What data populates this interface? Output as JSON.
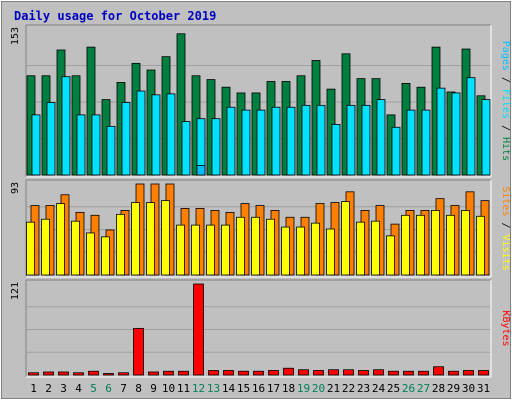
{
  "title": "Daily usage for October 2019",
  "colors": {
    "background": "#c0c0c0",
    "panel": "#c0c0c0",
    "title": "#0000c0",
    "hits": "#008040",
    "files": "#00e0ff",
    "pages": "#00c0ff",
    "visits": "#ffff00",
    "sites": "#ff8000",
    "kbytes": "#ff0000",
    "weekend_label": "#00805c",
    "weekday_label": "#000000",
    "grid": "#a0a0a0"
  },
  "chart_data": {
    "type": "bar",
    "title": "Daily usage for October 2019",
    "categories": [
      "1",
      "2",
      "3",
      "4",
      "5",
      "6",
      "7",
      "8",
      "9",
      "10",
      "11",
      "12",
      "13",
      "14",
      "15",
      "16",
      "17",
      "18",
      "19",
      "20",
      "21",
      "22",
      "23",
      "24",
      "25",
      "26",
      "27",
      "28",
      "29",
      "30",
      "31"
    ],
    "weekend_days": [
      "5",
      "6",
      "12",
      "13",
      "19",
      "20",
      "26",
      "27"
    ],
    "panels": [
      {
        "name": "hits-files-pages",
        "ymax_label": "153",
        "ylim": [
          0,
          153
        ],
        "legend": [
          {
            "text": "Pages",
            "color": "#00c0ff"
          },
          {
            "text": " / ",
            "color": "#000000"
          },
          {
            "text": "Files",
            "color": "#00e0ff"
          },
          {
            "text": " / ",
            "color": "#000000"
          },
          {
            "text": "Hits",
            "color": "#008040"
          }
        ],
        "series": [
          {
            "key": "hits",
            "color": "#008040",
            "values": [
              104,
              104,
              131,
              104,
              134,
              79,
              97,
              117,
              110,
              124,
              148,
              104,
              100,
              92,
              86,
              86,
              98,
              98,
              104,
              120,
              90,
              127,
              101,
              101,
              63,
              96,
              92,
              134,
              87,
              132,
              83
            ]
          },
          {
            "key": "files",
            "color": "#00e0ff",
            "values": [
              63,
              76,
              103,
              63,
              63,
              51,
              76,
              88,
              84,
              85,
              56,
              59,
              59,
              71,
              68,
              68,
              71,
              71,
              73,
              73,
              53,
              73,
              73,
              79,
              50,
              68,
              68,
              91,
              86,
              102,
              79
            ]
          },
          {
            "key": "pages",
            "color": "#00c0ff",
            "values": [
              0,
              0,
              0,
              0,
              0,
              0,
              0,
              0,
              0,
              0,
              0,
              10,
              0,
              0,
              0,
              0,
              0,
              0,
              0,
              0,
              0,
              0,
              0,
              0,
              0,
              0,
              0,
              0,
              0,
              0,
              0
            ]
          }
        ]
      },
      {
        "name": "visits-sites",
        "ymax_label": "93",
        "ylim": [
          0,
          93
        ],
        "legend": [
          {
            "text": "Sites",
            "color": "#ff8000"
          },
          {
            "text": " / ",
            "color": "#000000"
          },
          {
            "text": "Visits",
            "color": "#ffff00"
          }
        ],
        "series": [
          {
            "key": "sites",
            "color": "#ff8000",
            "values": [
              71,
              71,
              82,
              64,
              61,
              46,
              66,
              93,
              93,
              93,
              68,
              68,
              66,
              64,
              73,
              71,
              66,
              59,
              59,
              73,
              74,
              85,
              66,
              71,
              52,
              66,
              66,
              78,
              71,
              85,
              76
            ]
          },
          {
            "key": "visits",
            "color": "#ffff00",
            "values": [
              54,
              57,
              73,
              55,
              43,
              39,
              62,
              74,
              74,
              76,
              51,
              51,
              51,
              51,
              59,
              59,
              57,
              49,
              49,
              53,
              47,
              75,
              54,
              55,
              40,
              61,
              61,
              66,
              61,
              66,
              60
            ]
          }
        ]
      },
      {
        "name": "kbytes",
        "ymax_label": "121",
        "ylim": [
          0,
          121
        ],
        "legend": [
          {
            "text": "KBytes",
            "color": "#ff0000"
          }
        ],
        "series": [
          {
            "key": "kbytes",
            "color": "#ff0000",
            "values": [
              3,
              4,
              4,
              3,
              5,
              2,
              3,
              62,
              4,
              5,
              5,
              121,
              6,
              6,
              5,
              5,
              6,
              9,
              7,
              6,
              7,
              7,
              6,
              7,
              5,
              5,
              5,
              11,
              5,
              6,
              6
            ]
          }
        ]
      }
    ]
  }
}
